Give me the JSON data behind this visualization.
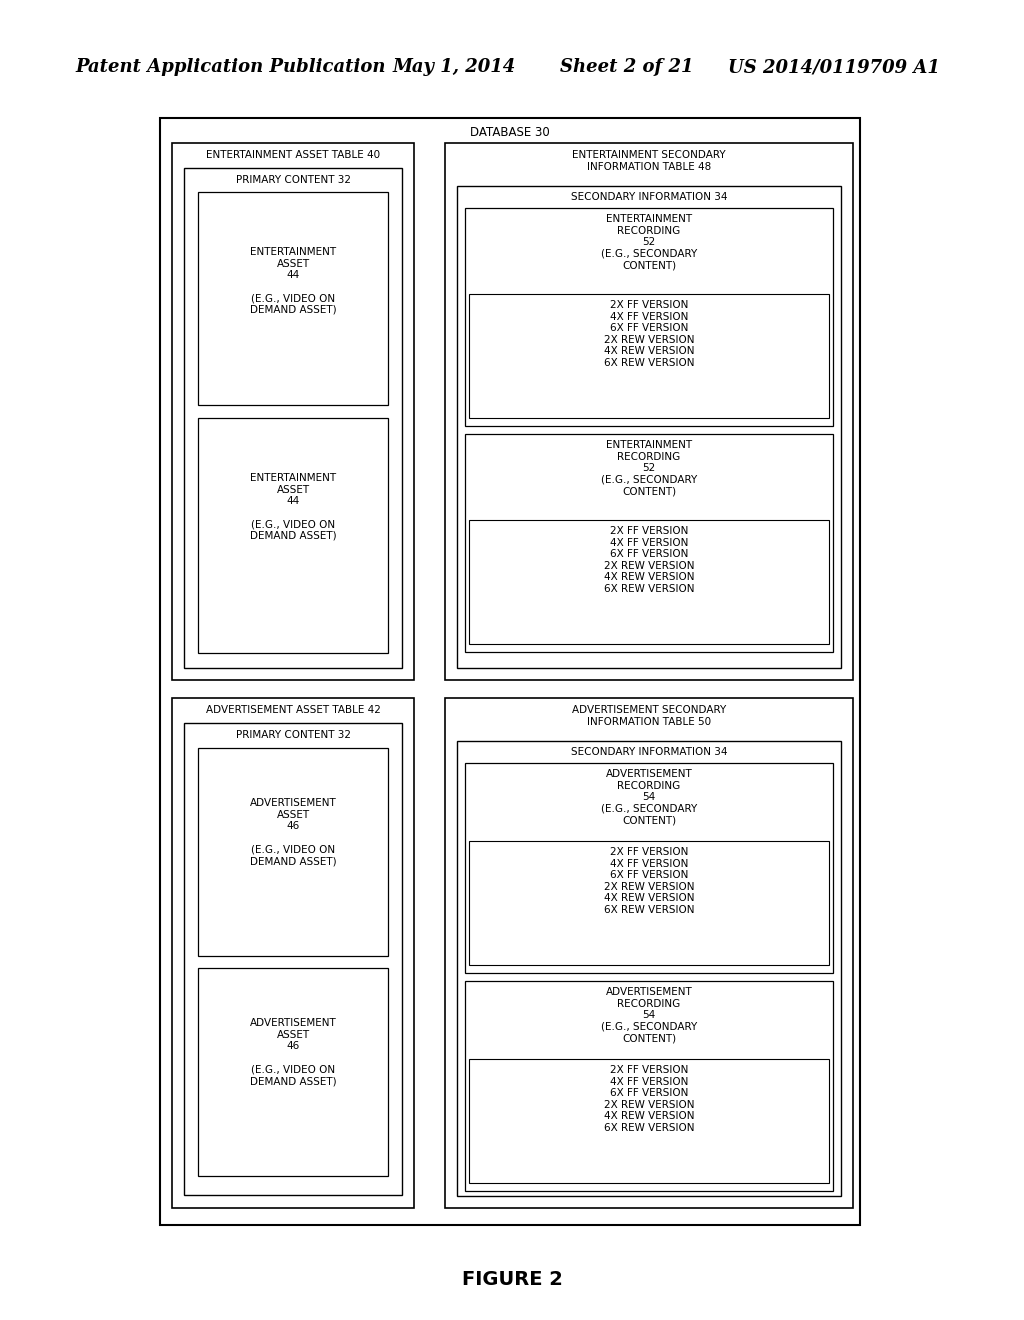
{
  "title_header": "Patent Application Publication",
  "title_date": "May 1, 2014",
  "title_sheet": "Sheet 2 of 21",
  "title_patent": "US 2014/0119709 A1",
  "figure_label": "FIGURE 2",
  "bg_color": "#ffffff",
  "database_label": "DATABASE 30",
  "top_left_table_label": "ENTERTAINMENT ASSET TABLE 40",
  "top_left_primary_label": "PRIMARY CONTENT 32",
  "top_left_asset1_lines": [
    "ENTERTAINMENT",
    "ASSET",
    "44",
    "",
    "(E.G., VIDEO ON",
    "DEMAND ASSET)"
  ],
  "top_left_asset2_lines": [
    "ENTERTAINMENT",
    "ASSET",
    "44",
    "",
    "(E.G., VIDEO ON",
    "DEMAND ASSET)"
  ],
  "top_right_table_label": "ENTERTAINMENT SECONDARY\nINFORMATION TABLE 48",
  "top_right_secondary_label": "SECONDARY INFORMATION 34",
  "top_right_rec1_header": [
    "ENTERTAINMENT",
    "RECORDING",
    "52",
    "(E.G., SECONDARY",
    "CONTENT)"
  ],
  "top_right_rec1_versions": [
    "2X FF VERSION",
    "4X FF VERSION",
    "6X FF VERSION",
    "2X REW VERSION",
    "4X REW VERSION",
    "6X REW VERSION"
  ],
  "top_right_rec2_header": [
    "ENTERTAINMENT",
    "RECORDING",
    "52",
    "(E.G., SECONDARY",
    "CONTENT)"
  ],
  "top_right_rec2_versions": [
    "2X FF VERSION",
    "4X FF VERSION",
    "6X FF VERSION",
    "2X REW VERSION",
    "4X REW VERSION",
    "6X REW VERSION"
  ],
  "bot_left_table_label": "ADVERTISEMENT ASSET TABLE 42",
  "bot_left_primary_label": "PRIMARY CONTENT 32",
  "bot_left_asset1_lines": [
    "ADVERTISEMENT",
    "ASSET",
    "46",
    "",
    "(E.G., VIDEO ON",
    "DEMAND ASSET)"
  ],
  "bot_left_asset2_lines": [
    "ADVERTISEMENT",
    "ASSET",
    "46",
    "",
    "(E.G., VIDEO ON",
    "DEMAND ASSET)"
  ],
  "bot_right_table_label": "ADVERTISEMENT SECONDARY\nINFORMATION TABLE 50",
  "bot_right_secondary_label": "SECONDARY INFORMATION 34",
  "bot_right_rec1_header": [
    "ADVERTISEMENT",
    "RECORDING",
    "54",
    "(E.G., SECONDARY",
    "CONTENT)"
  ],
  "bot_right_rec1_versions": [
    "2X FF VERSION",
    "4X FF VERSION",
    "6X FF VERSION",
    "2X REW VERSION",
    "4X REW VERSION",
    "6X REW VERSION"
  ],
  "bot_right_rec2_header": [
    "ADVERTISEMENT",
    "RECORDING",
    "54",
    "(E.G., SECONDARY",
    "CONTENT)"
  ],
  "bot_right_rec2_versions": [
    "2X FF VERSION",
    "4X FF VERSION",
    "6X FF VERSION",
    "2X REW VERSION",
    "4X REW VERSION",
    "6X REW VERSION"
  ]
}
